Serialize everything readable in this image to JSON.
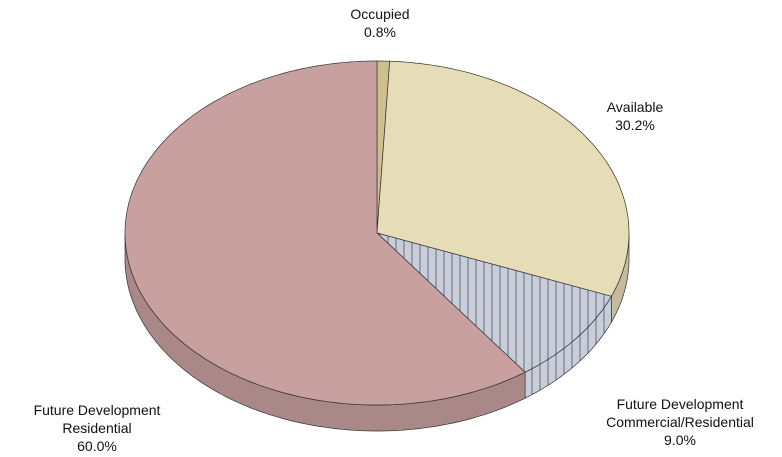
{
  "chart_data": {
    "type": "pie3d",
    "categories": [
      "Occupied",
      "Available",
      "Future Development\nCommercial/Residential",
      "Future Development\nResidential"
    ],
    "values": [
      0.8,
      30.2,
      9.0,
      60.0
    ],
    "value_labels": [
      "0.8%",
      "30.2%",
      "9.0%",
      "60.0%"
    ],
    "colors": [
      "#cdbf8e",
      "#e6dcb8",
      "#c8cddb",
      "#c9a0a0"
    ],
    "hatched": [
      false,
      false,
      true,
      false
    ]
  }
}
